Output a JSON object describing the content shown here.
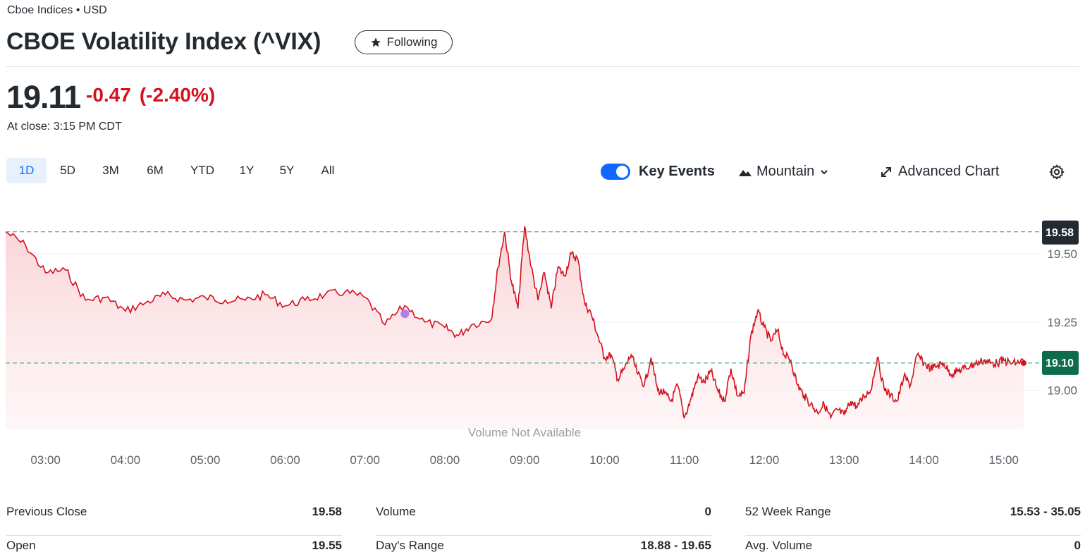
{
  "header": {
    "exchange": "Cboe Indices • USD",
    "title": "CBOE Volatility Index (^VIX)",
    "follow_label": "Following"
  },
  "quote": {
    "price": "19.11",
    "change": "-0.47",
    "change_pct": "(-2.40%)",
    "close_time": "At close: 3:15 PM CDT"
  },
  "ranges": [
    "1D",
    "5D",
    "3M",
    "6M",
    "YTD",
    "1Y",
    "5Y",
    "All"
  ],
  "active_range": "1D",
  "controls": {
    "key_events": "Key Events",
    "key_events_on": true,
    "chart_type": "Mountain",
    "advanced": "Advanced Chart"
  },
  "chart_data": {
    "type": "area",
    "x_ticks": [
      "03:00",
      "04:00",
      "05:00",
      "06:00",
      "07:00",
      "08:00",
      "09:00",
      "10:00",
      "11:00",
      "12:00",
      "13:00",
      "14:00",
      "15:00"
    ],
    "y_ticks": [
      "19.50",
      "19.25",
      "19.00"
    ],
    "ylim": [
      18.86,
      19.68
    ],
    "previous_close_label": "19.58",
    "current_label": "19.10",
    "previous_close": 19.58,
    "current": 19.1,
    "volume_note": "Volume Not Available",
    "line_color": "#d3121f",
    "series": [
      {
        "x": [
          "02:30",
          "02:45",
          "03:00",
          "03:15",
          "03:30",
          "03:45",
          "04:00",
          "04:15",
          "04:30",
          "04:45",
          "05:00",
          "05:15",
          "05:30",
          "05:45",
          "06:00",
          "06:15",
          "06:30",
          "06:45",
          "07:00",
          "07:15",
          "07:30",
          "07:45",
          "08:00",
          "08:10",
          "08:20",
          "08:35",
          "08:40",
          "08:45",
          "08:50",
          "08:55",
          "09:00",
          "09:05",
          "09:10",
          "09:15",
          "09:20",
          "09:25",
          "09:30",
          "09:35",
          "09:40",
          "09:45",
          "09:50",
          "09:55",
          "10:00",
          "10:05",
          "10:10",
          "10:15",
          "10:20",
          "10:25",
          "10:30",
          "10:35",
          "10:40",
          "10:45",
          "10:50",
          "10:55",
          "11:00",
          "11:05",
          "11:10",
          "11:15",
          "11:20",
          "11:25",
          "11:30",
          "11:35",
          "11:40",
          "11:45",
          "11:50",
          "11:55",
          "12:00",
          "12:05",
          "12:10",
          "12:15",
          "12:20",
          "12:25",
          "12:30",
          "12:35",
          "12:40",
          "12:45",
          "12:50",
          "12:55",
          "13:00",
          "13:05",
          "13:10",
          "13:15",
          "13:20",
          "13:25",
          "13:30",
          "13:35",
          "13:40",
          "13:45",
          "13:50",
          "13:55",
          "14:00",
          "14:05",
          "14:10",
          "14:15",
          "14:20",
          "14:25",
          "14:30",
          "14:35",
          "14:40",
          "14:45",
          "14:50",
          "14:55",
          "15:00",
          "15:05",
          "15:10",
          "15:15"
        ],
        "values": [
          19.58,
          19.53,
          19.43,
          19.44,
          19.33,
          19.34,
          19.29,
          19.32,
          19.35,
          19.33,
          19.34,
          19.33,
          19.33,
          19.35,
          19.31,
          19.33,
          19.35,
          19.36,
          19.34,
          19.24,
          19.31,
          19.25,
          19.23,
          19.2,
          19.24,
          19.26,
          19.45,
          19.58,
          19.4,
          19.3,
          19.6,
          19.45,
          19.33,
          19.43,
          19.3,
          19.45,
          19.42,
          19.5,
          19.48,
          19.32,
          19.28,
          19.2,
          19.12,
          19.13,
          19.04,
          19.08,
          19.13,
          19.06,
          19.02,
          19.12,
          19.0,
          18.99,
          18.96,
          19.02,
          18.9,
          18.97,
          19.05,
          19.03,
          19.07,
          19.0,
          18.96,
          19.08,
          18.98,
          18.99,
          19.2,
          19.29,
          19.23,
          19.18,
          19.22,
          19.13,
          19.11,
          19.02,
          18.98,
          18.95,
          18.92,
          18.95,
          18.9,
          18.93,
          18.91,
          18.96,
          18.94,
          18.98,
          19.0,
          19.12,
          19.01,
          18.98,
          18.96,
          19.05,
          19.02,
          19.13,
          19.1,
          19.08,
          19.09,
          19.1,
          19.06,
          19.07,
          19.08,
          19.09,
          19.1,
          19.11,
          19.1,
          19.1,
          19.11,
          19.1,
          19.1,
          19.11
        ]
      }
    ]
  },
  "stats": {
    "col1": [
      {
        "label": "Previous Close",
        "value": "19.58"
      },
      {
        "label": "Open",
        "value": "19.55"
      }
    ],
    "col2": [
      {
        "label": "Volume",
        "value": "0"
      },
      {
        "label": "Day's Range",
        "value": "18.88 - 19.65"
      }
    ],
    "col3": [
      {
        "label": "52 Week Range",
        "value": "15.53 - 35.05"
      },
      {
        "label": "Avg. Volume",
        "value": "0"
      }
    ]
  }
}
